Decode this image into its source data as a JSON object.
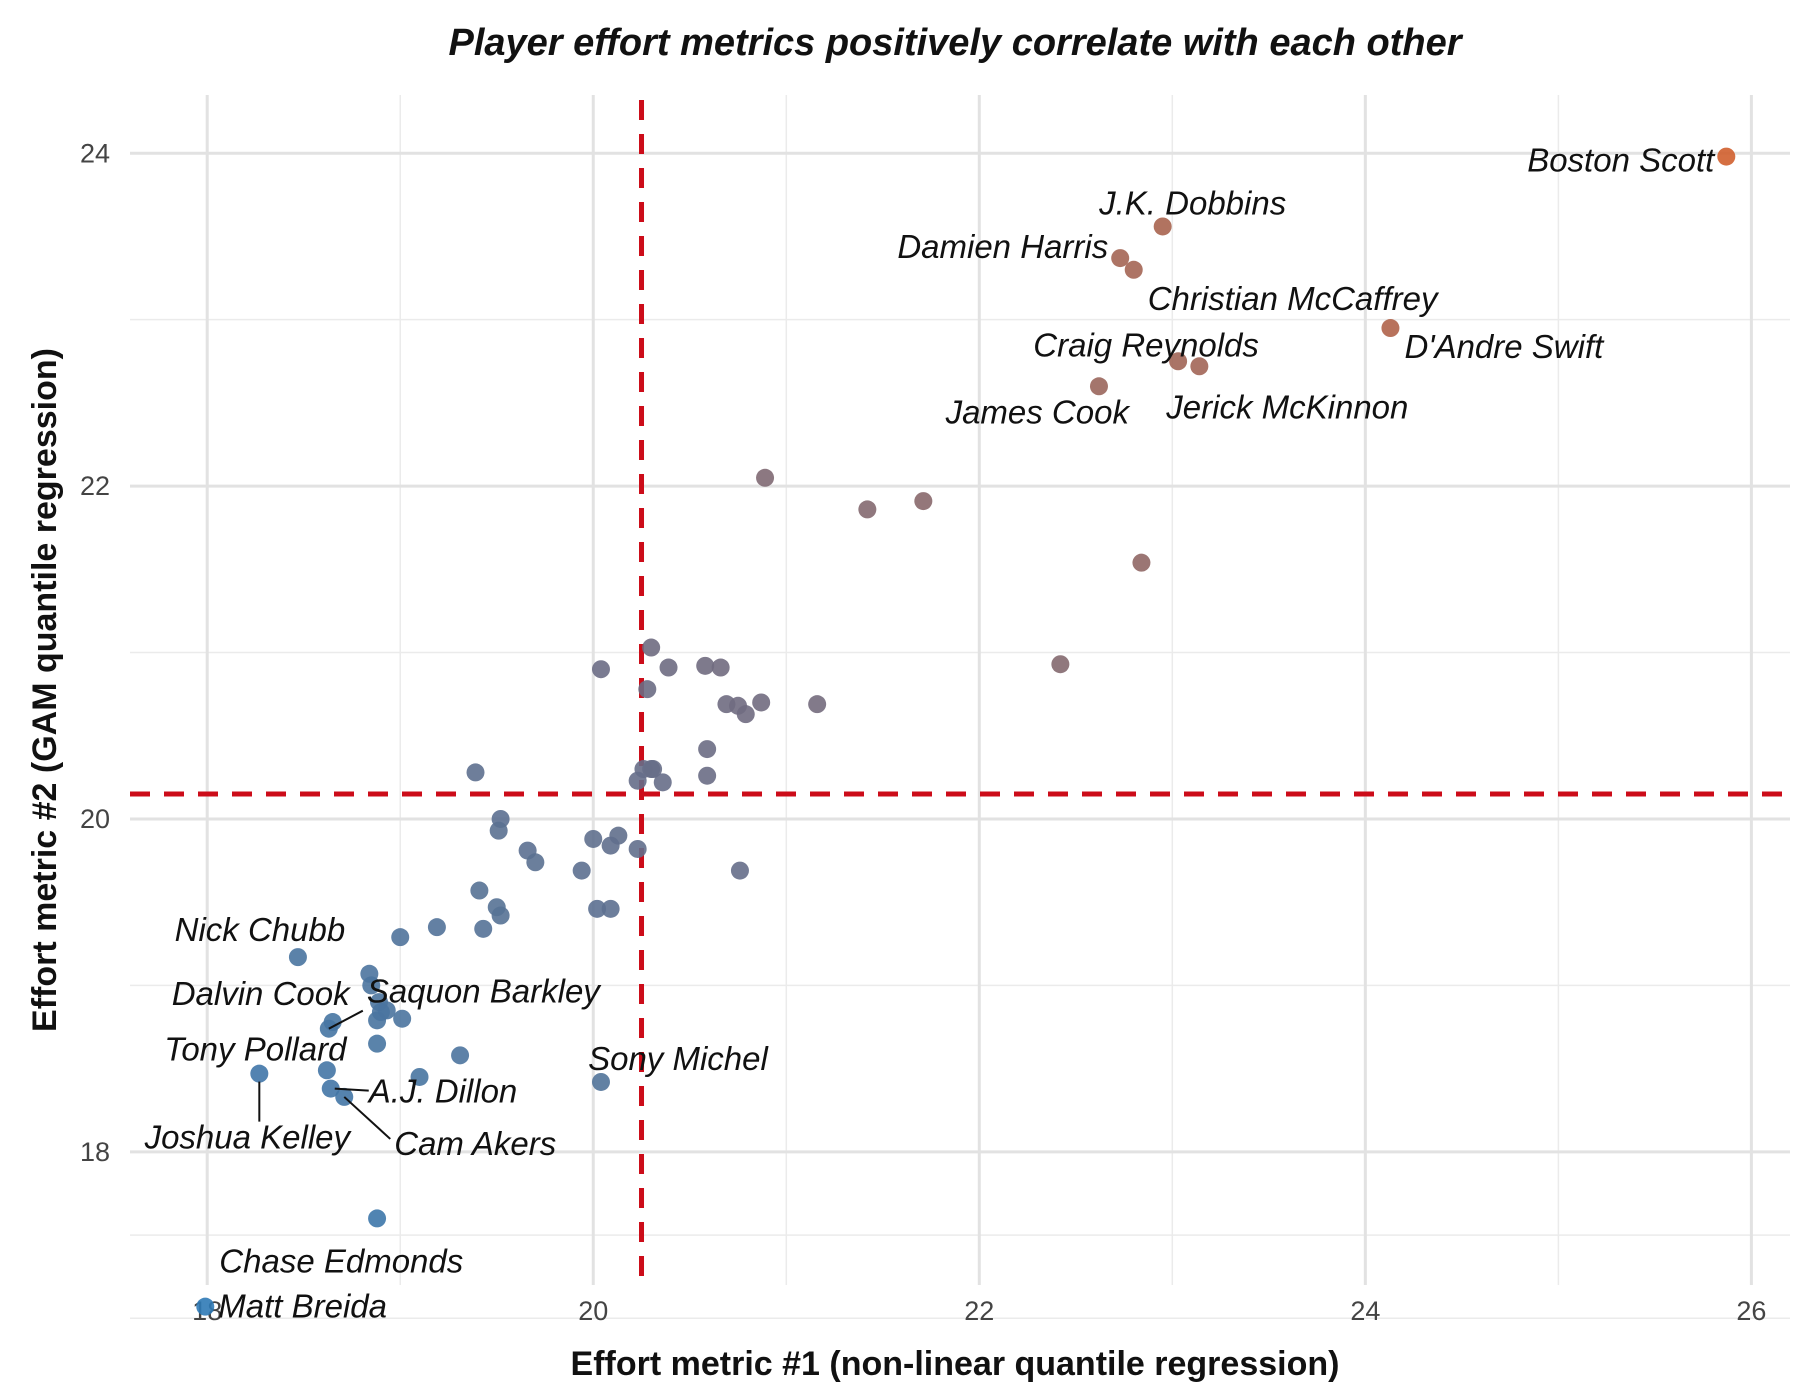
{
  "chart_data": {
    "type": "scatter",
    "title": "Player effort metrics positively correlate with each other",
    "xlabel": "Effort metric #1 (non-linear quantile regression)",
    "ylabel": "Effort metric #2 (GAM quantile regression)",
    "xlim": [
      17.6,
      26.2
    ],
    "ylim": [
      17.2,
      24.35
    ],
    "xticks": [
      18,
      20,
      22,
      24,
      26
    ],
    "yticks": [
      18,
      20,
      22,
      24
    ],
    "grid": true,
    "reference_lines": {
      "x": 20.25,
      "y": 20.15,
      "color": "#cc0c19",
      "style": "dashed"
    },
    "color_scale": {
      "low": "#2f7ab6",
      "mid": "#7a6a78",
      "high": "#d05f2e"
    },
    "labeled_points": [
      {
        "name": "Boston Scott",
        "x": 25.87,
        "y": 23.98
      },
      {
        "name": "J.K. Dobbins",
        "x": 22.95,
        "y": 23.56
      },
      {
        "name": "Damien Harris",
        "x": 22.73,
        "y": 23.37
      },
      {
        "name": "Christian McCaffrey",
        "x": 22.8,
        "y": 23.3
      },
      {
        "name": "D'Andre Swift",
        "x": 24.13,
        "y": 22.95
      },
      {
        "name": "Craig Reynolds",
        "x": 23.03,
        "y": 22.75
      },
      {
        "name": "Jerick McKinnon",
        "x": 23.14,
        "y": 22.72
      },
      {
        "name": "James Cook",
        "x": 22.62,
        "y": 22.6
      },
      {
        "name": "Nick Chubb",
        "x": 18.47,
        "y": 19.17
      },
      {
        "name": "Dalvin Cook",
        "x": 18.65,
        "y": 18.78
      },
      {
        "name": "Saquon Barkley",
        "x": 18.63,
        "y": 18.74
      },
      {
        "name": "Tony Pollard",
        "x": 18.27,
        "y": 18.47
      },
      {
        "name": "Joshua Kelley",
        "x": 18.27,
        "y": 18.47
      },
      {
        "name": "A.J. Dillon",
        "x": 18.64,
        "y": 18.38
      },
      {
        "name": "Cam Akers",
        "x": 18.71,
        "y": 18.33
      },
      {
        "name": "Sony Michel",
        "x": 20.04,
        "y": 18.42
      },
      {
        "name": "Chase Edmonds",
        "x": 17.99,
        "y": 17.07
      },
      {
        "name": "Matt Breida",
        "x": 17.99,
        "y": 17.07
      }
    ],
    "points": [
      {
        "x": 25.87,
        "y": 23.98
      },
      {
        "x": 22.95,
        "y": 23.56
      },
      {
        "x": 22.73,
        "y": 23.37
      },
      {
        "x": 22.8,
        "y": 23.3
      },
      {
        "x": 24.13,
        "y": 22.95
      },
      {
        "x": 23.03,
        "y": 22.75
      },
      {
        "x": 23.14,
        "y": 22.72
      },
      {
        "x": 22.62,
        "y": 22.6
      },
      {
        "x": 20.89,
        "y": 22.05
      },
      {
        "x": 21.42,
        "y": 21.86
      },
      {
        "x": 21.71,
        "y": 21.91
      },
      {
        "x": 22.84,
        "y": 21.54
      },
      {
        "x": 22.42,
        "y": 20.93
      },
      {
        "x": 20.3,
        "y": 21.03
      },
      {
        "x": 20.04,
        "y": 20.9
      },
      {
        "x": 20.39,
        "y": 20.91
      },
      {
        "x": 20.58,
        "y": 20.92
      },
      {
        "x": 20.66,
        "y": 20.91
      },
      {
        "x": 20.28,
        "y": 20.78
      },
      {
        "x": 20.69,
        "y": 20.69
      },
      {
        "x": 20.75,
        "y": 20.68
      },
      {
        "x": 20.87,
        "y": 20.7
      },
      {
        "x": 20.79,
        "y": 20.63
      },
      {
        "x": 21.16,
        "y": 20.69
      },
      {
        "x": 20.59,
        "y": 20.42
      },
      {
        "x": 20.3,
        "y": 20.3
      },
      {
        "x": 20.26,
        "y": 20.3
      },
      {
        "x": 20.31,
        "y": 20.3
      },
      {
        "x": 20.23,
        "y": 20.23
      },
      {
        "x": 20.36,
        "y": 20.22
      },
      {
        "x": 20.59,
        "y": 20.26
      },
      {
        "x": 19.39,
        "y": 20.28
      },
      {
        "x": 19.52,
        "y": 20.0
      },
      {
        "x": 19.51,
        "y": 19.93
      },
      {
        "x": 19.66,
        "y": 19.81
      },
      {
        "x": 19.7,
        "y": 19.74
      },
      {
        "x": 20.0,
        "y": 19.88
      },
      {
        "x": 20.13,
        "y": 19.9
      },
      {
        "x": 20.09,
        "y": 19.84
      },
      {
        "x": 20.23,
        "y": 19.82
      },
      {
        "x": 19.94,
        "y": 19.69
      },
      {
        "x": 20.76,
        "y": 19.69
      },
      {
        "x": 19.41,
        "y": 19.57
      },
      {
        "x": 19.5,
        "y": 19.47
      },
      {
        "x": 19.52,
        "y": 19.42
      },
      {
        "x": 19.43,
        "y": 19.34
      },
      {
        "x": 20.02,
        "y": 19.46
      },
      {
        "x": 20.09,
        "y": 19.46
      },
      {
        "x": 19.19,
        "y": 19.35
      },
      {
        "x": 19.0,
        "y": 19.29
      },
      {
        "x": 18.47,
        "y": 19.17
      },
      {
        "x": 18.84,
        "y": 19.07
      },
      {
        "x": 18.85,
        "y": 19.0
      },
      {
        "x": 18.89,
        "y": 18.9
      },
      {
        "x": 18.93,
        "y": 18.85
      },
      {
        "x": 18.88,
        "y": 18.79
      },
      {
        "x": 19.01,
        "y": 18.8
      },
      {
        "x": 18.9,
        "y": 18.84
      },
      {
        "x": 18.65,
        "y": 18.78
      },
      {
        "x": 18.63,
        "y": 18.74
      },
      {
        "x": 18.88,
        "y": 18.65
      },
      {
        "x": 19.31,
        "y": 18.58
      },
      {
        "x": 18.27,
        "y": 18.47
      },
      {
        "x": 18.62,
        "y": 18.49
      },
      {
        "x": 19.1,
        "y": 18.45
      },
      {
        "x": 20.04,
        "y": 18.42
      },
      {
        "x": 18.64,
        "y": 18.38
      },
      {
        "x": 18.71,
        "y": 18.33
      },
      {
        "x": 18.88,
        "y": 17.6
      },
      {
        "x": 17.99,
        "y": 17.07
      }
    ]
  }
}
